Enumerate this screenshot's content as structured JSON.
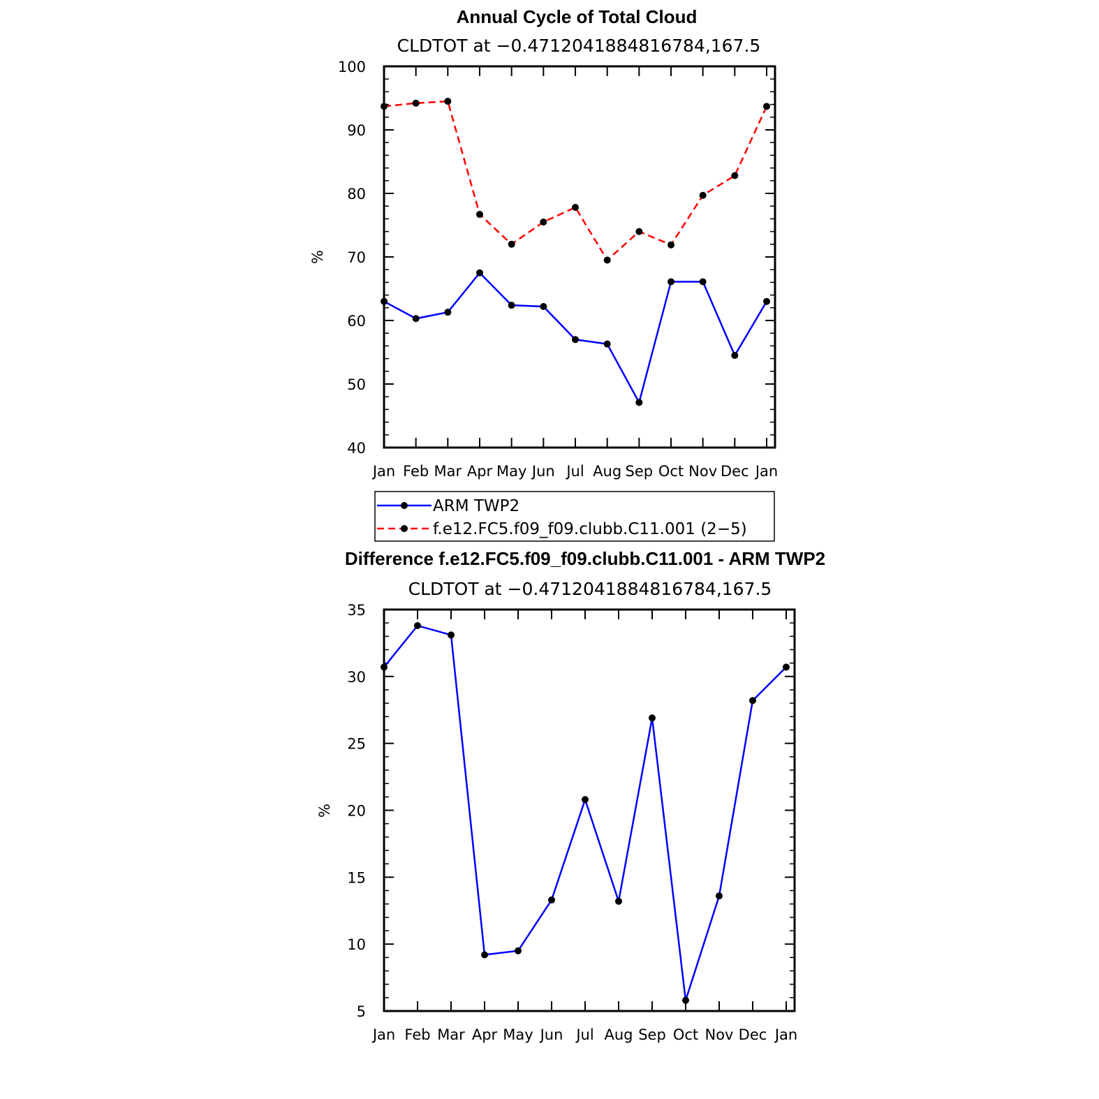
{
  "chart_data": [
    {
      "type": "line",
      "title": "Annual Cycle of Total Cloud",
      "subtitle": "CLDTOT at −0.4712041884816784,167.5",
      "ylabel": "%",
      "xlabel": "",
      "categories": [
        "Jan",
        "Feb",
        "Mar",
        "Apr",
        "May",
        "Jun",
        "Jul",
        "Aug",
        "Sep",
        "Oct",
        "Nov",
        "Dec",
        "Jan"
      ],
      "ylim": [
        40,
        100
      ],
      "yticks": [
        40,
        50,
        60,
        70,
        80,
        90,
        100
      ],
      "series": [
        {
          "name": "ARM TWP2",
          "color": "#0000ff",
          "style": "solid",
          "marker": "circle",
          "values": [
            63.0,
            60.3,
            61.3,
            67.5,
            62.4,
            62.2,
            57.0,
            56.3,
            47.1,
            66.1,
            66.1,
            54.5,
            63.0
          ]
        },
        {
          "name": "f.e12.FC5.f09_f09.clubb.C11.001 (2−5)",
          "color": "#ff0000",
          "style": "dashed",
          "marker": "circle",
          "values": [
            93.7,
            94.2,
            94.5,
            76.7,
            72.0,
            75.5,
            77.8,
            69.5,
            74.0,
            71.9,
            79.7,
            82.8,
            93.7
          ]
        }
      ],
      "legend": "below"
    },
    {
      "type": "line",
      "title": "Difference f.e12.FC5.f09_f09.clubb.C11.001 - ARM TWP2",
      "subtitle": "CLDTOT at −0.4712041884816784,167.5",
      "ylabel": "%",
      "xlabel": "",
      "categories": [
        "Jan",
        "Feb",
        "Mar",
        "Apr",
        "May",
        "Jun",
        "Jul",
        "Aug",
        "Sep",
        "Oct",
        "Nov",
        "Dec",
        "Jan"
      ],
      "ylim": [
        5,
        35
      ],
      "yticks": [
        5,
        10,
        15,
        20,
        25,
        30,
        35
      ],
      "series": [
        {
          "color": "#0000ff",
          "style": "solid",
          "marker": "circle",
          "values": [
            30.7,
            33.8,
            33.1,
            9.2,
            9.5,
            13.3,
            20.8,
            13.2,
            26.9,
            5.8,
            13.6,
            28.2,
            30.7
          ]
        }
      ]
    }
  ]
}
